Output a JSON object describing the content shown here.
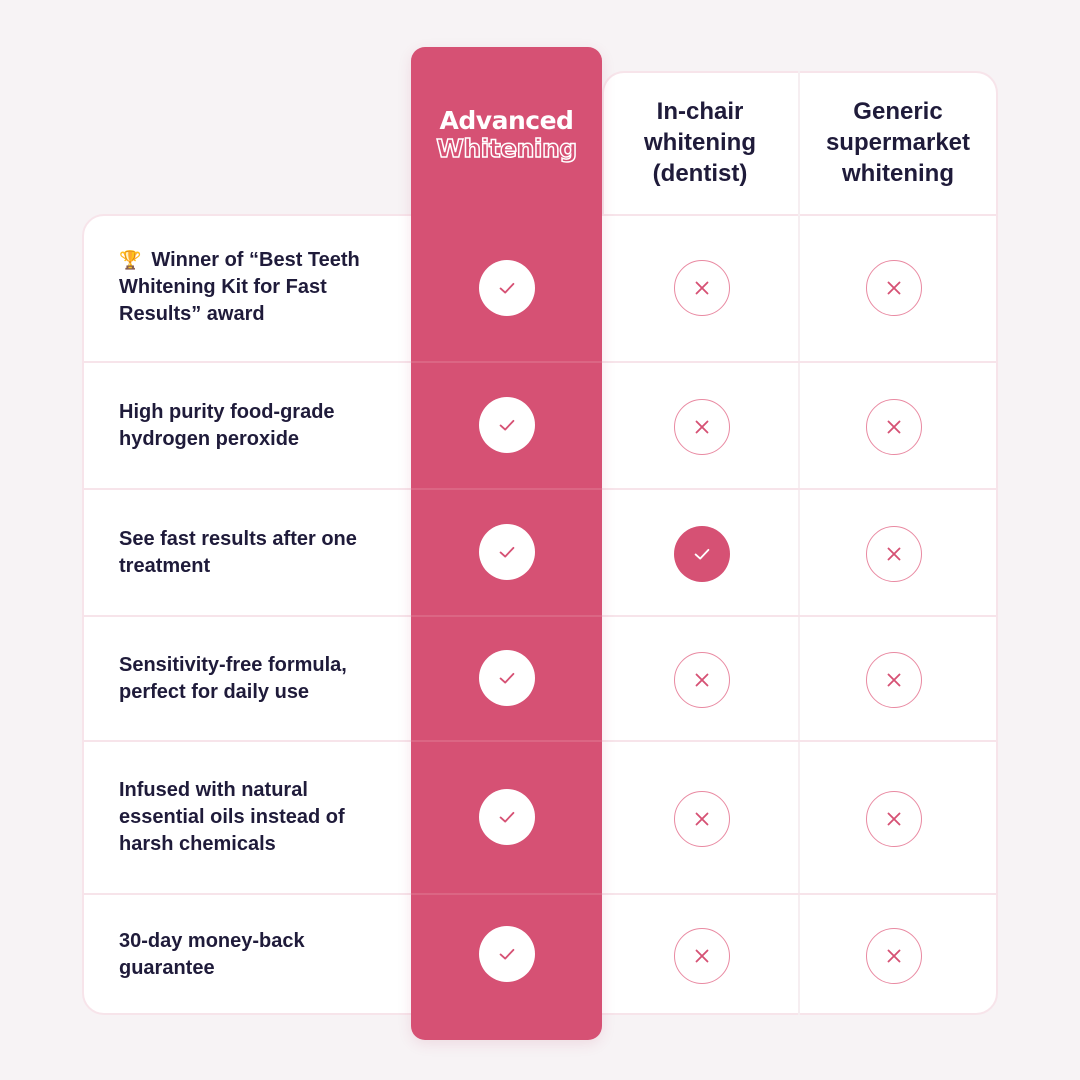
{
  "columns": {
    "brand": {
      "line1": "Advanced",
      "line2": "Whitening"
    },
    "col2": "In-chair whitening (dentist)",
    "col3": "Generic supermarket whitening"
  },
  "colors": {
    "brand_pink": "#d65174",
    "cross_pink": "#e98aa2",
    "text_dark": "#1f1b3a",
    "background": "#f7f3f5"
  },
  "rows": [
    {
      "trophy_icon": "trophy-icon",
      "feature": "Winner of “Best Teeth Whitening Kit for Fast Results” award",
      "brand": "check",
      "col2": "cross",
      "col3": "cross"
    },
    {
      "feature": "High purity food-grade hydrogen peroxide",
      "brand": "check",
      "col2": "cross",
      "col3": "cross"
    },
    {
      "feature": "See fast results after one treatment",
      "brand": "check",
      "col2": "check",
      "col3": "cross"
    },
    {
      "feature": "Sensitivity-free formula, perfect for daily use",
      "brand": "check",
      "col2": "cross",
      "col3": "cross"
    },
    {
      "feature": "Infused with natural essential oils instead of harsh chemicals",
      "brand": "check",
      "col2": "cross",
      "col3": "cross"
    },
    {
      "feature": "30-day money-back guarantee",
      "brand": "check",
      "col2": "cross",
      "col3": "cross"
    }
  ]
}
